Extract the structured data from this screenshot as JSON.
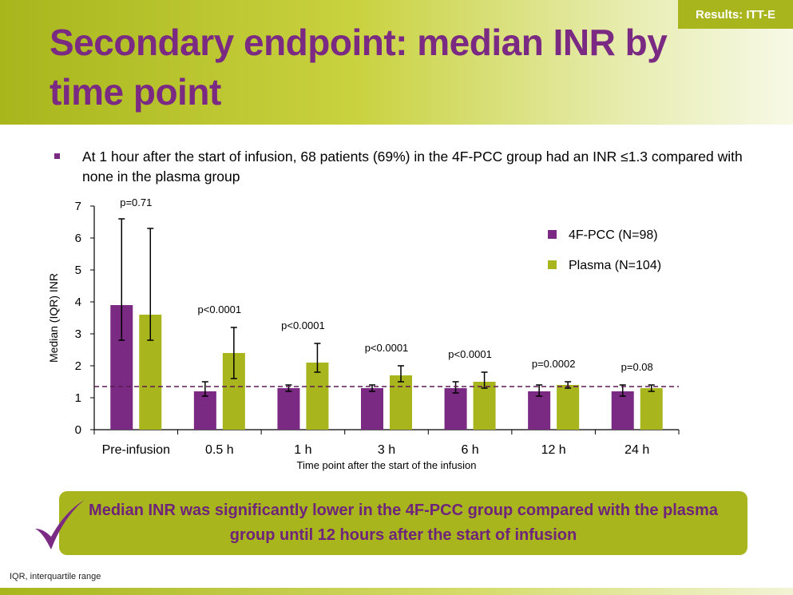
{
  "header": {
    "badge": "Results: ITT-E",
    "title": "Secondary endpoint: median INR by time point"
  },
  "bullet": "At 1 hour after the start of infusion, 68 patients (69%) in the 4F-PCC group had an INR ≤1.3 compared with none in the plasma group",
  "callout": "Median INR was significantly lower in the 4F-PCC group compared with the plasma group until 12 hours after the start of infusion",
  "footnote": "IQR, interquartile range",
  "colors": {
    "purple": "#7a2a82",
    "green": "#a9b51d",
    "title": "#7a2a82"
  },
  "chart_data": {
    "type": "bar",
    "xlabel": "Time point after the start of the infusion",
    "ylabel": "Median (IQR) INR",
    "ylim": [
      0,
      7
    ],
    "yticks": [
      0,
      1,
      2,
      3,
      4,
      5,
      6,
      7
    ],
    "categories": [
      "Pre-infusion",
      "0.5 h",
      "1 h",
      "3 h",
      "6 h",
      "12 h",
      "24 h"
    ],
    "series": [
      {
        "name": "4F-PCC (N=98)",
        "color": "#7a2a82",
        "values": [
          3.9,
          1.2,
          1.3,
          1.3,
          1.3,
          1.2,
          1.2
        ],
        "iqr_low": [
          2.8,
          1.05,
          1.2,
          1.2,
          1.15,
          1.05,
          1.05
        ],
        "iqr_high": [
          6.6,
          1.5,
          1.4,
          1.4,
          1.5,
          1.4,
          1.4
        ]
      },
      {
        "name": "Plasma (N=104)",
        "color": "#a9b51d",
        "values": [
          3.6,
          2.4,
          2.1,
          1.7,
          1.5,
          1.4,
          1.3
        ],
        "iqr_low": [
          2.8,
          1.6,
          1.8,
          1.5,
          1.3,
          1.3,
          1.2
        ],
        "iqr_high": [
          6.3,
          3.2,
          2.7,
          2.0,
          1.8,
          1.5,
          1.4
        ]
      }
    ],
    "p_values": [
      "p=0.71",
      "p<0.0001",
      "p<0.0001",
      "p<0.0001",
      "p<0.0001",
      "p=0.0002",
      "p=0.08"
    ],
    "reference_line": 1.35,
    "legend_position": "top-right",
    "grid": false
  }
}
